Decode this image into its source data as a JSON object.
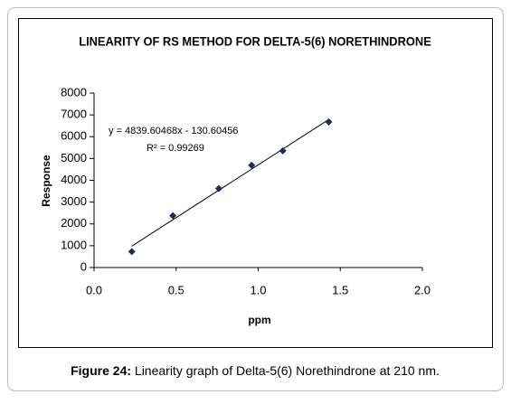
{
  "chart_data": {
    "type": "scatter",
    "title": "LINEARITY OF RS METHOD FOR DELTA-5(6) NORETHINDRONE",
    "x_label": "ppm",
    "y_label": "Response",
    "x": [
      0.23,
      0.48,
      0.76,
      0.96,
      1.15,
      1.43
    ],
    "series": [
      {
        "name": "Response",
        "color": "#1f2a5c",
        "values": [
          730,
          2380,
          3620,
          4690,
          5350,
          6680
        ]
      }
    ],
    "trendline": {
      "equation": "y = 4839.60468x - 130.60456",
      "r2_label": "R² = 0.99269",
      "slope": 4839.60468,
      "intercept": -130.60456,
      "r2": 0.99269
    },
    "xlim": [
      0,
      2
    ],
    "xticks": [
      {
        "value": 0,
        "label": "0.0"
      },
      {
        "value": 0.5,
        "label": "0.5"
      },
      {
        "value": 1,
        "label": "1.0"
      },
      {
        "value": 1.5,
        "label": "1.5"
      },
      {
        "value": 2,
        "label": "2.0"
      }
    ],
    "ylim": [
      0,
      8000
    ],
    "yticks": [
      0,
      1000,
      2000,
      3000,
      4000,
      5000,
      6000,
      7000,
      8000
    ],
    "grid": false,
    "caption": {
      "label": "Figure 24:",
      "text": " Linearity graph of Delta-5(6) Norethindrone at 210 nm."
    }
  }
}
